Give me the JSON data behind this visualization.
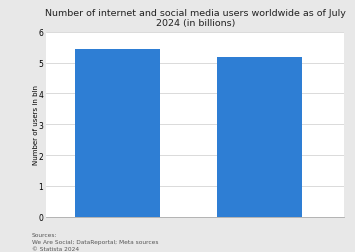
{
  "title": "Number of internet and social media users worldwide as of July 2024 (in billions)",
  "values": [
    5.45,
    5.17
  ],
  "bar_color": "#2e7ed4",
  "bar_positions": [
    1,
    3
  ],
  "bar_width": 1.2,
  "ylabel": "Number of users in bln",
  "ylim": [
    0,
    6
  ],
  "yticks": [
    0,
    1,
    2,
    3,
    4,
    5,
    6
  ],
  "xlim": [
    0,
    4.2
  ],
  "background_color": "#e8e8e8",
  "plot_bg_color": "#ffffff",
  "title_fontsize": 6.8,
  "ylabel_fontsize": 5.0,
  "tick_fontsize": 5.5,
  "source_line1": "Sources:",
  "source_line2": "We Are Social; DataReportal; Meta sources",
  "source_line3": "© Statista 2024",
  "source_fontsize": 4.2
}
